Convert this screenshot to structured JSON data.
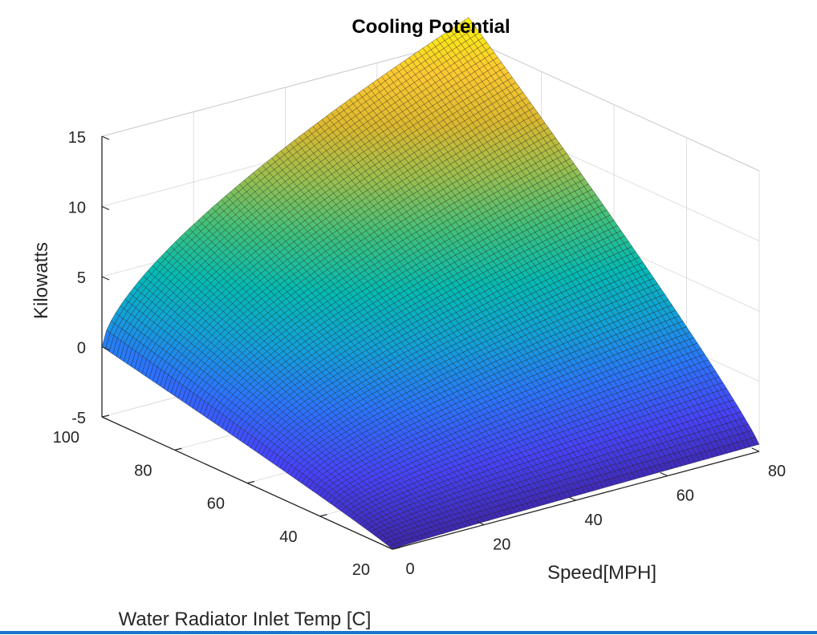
{
  "chart_data": {
    "type": "surface",
    "title": "Cooling Potential",
    "xlabel": "Speed[MPH]",
    "ylabel": "Water Radiator Inlet Temp [C]",
    "zlabel": "Kilowatts",
    "xlim": [
      0,
      80
    ],
    "ylim": [
      20,
      100
    ],
    "zlim": [
      -5,
      15
    ],
    "x_ticks": [
      "0",
      "20",
      "40",
      "60",
      "80"
    ],
    "y_ticks": [
      "20",
      "40",
      "60",
      "80",
      "100"
    ],
    "z_ticks": [
      "-5",
      "0",
      "5",
      "10",
      "15"
    ],
    "grid": true,
    "colormap": "parula",
    "colormap_stops": [
      "#3e26a8",
      "#4743f8",
      "#2c73fc",
      "#13a0d9",
      "#05bab3",
      "#3ec07c",
      "#99bf4e",
      "#dcb82f",
      "#fdca31",
      "#f9f40e"
    ],
    "x_range": [
      0,
      80
    ],
    "y_range": [
      20,
      100
    ],
    "corner_values": {
      "x0_y20": -5.0,
      "x80_y20": -4.5,
      "x0_y100": 0.0,
      "x80_y100": 16.5
    },
    "grid_resolution": [
      81,
      81
    ]
  }
}
